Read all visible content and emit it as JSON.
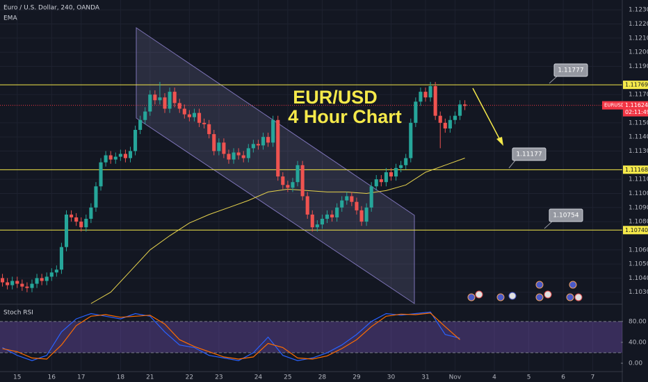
{
  "chart_data": [
    {
      "type": "candlestick",
      "title": "Euro / U.S. Dollar, 240, OANDA",
      "text": [
        "EUR/USD",
        "4 Hour Chart"
      ],
      "up_color": "#26a69a",
      "down_color": "#ef5350",
      "open": [
        1.104,
        1.1037,
        1.1035,
        1.1038,
        1.1036,
        1.1034,
        1.1033,
        1.1036,
        1.104,
        1.1038,
        1.1041,
        1.1044,
        1.1046,
        1.1062,
        1.1085,
        1.1083,
        1.108,
        1.1076,
        1.1082,
        1.109,
        1.1105,
        1.1122,
        1.1127,
        1.1124,
        1.1126,
        1.1128,
        1.1125,
        1.113,
        1.1145,
        1.1152,
        1.1158,
        1.117,
        1.1166,
        1.1168,
        1.116,
        1.1172,
        1.1164,
        1.116,
        1.1156,
        1.1154,
        1.1157,
        1.115,
        1.1149,
        1.1142,
        1.113,
        1.1136,
        1.1128,
        1.1124,
        1.1129,
        1.1127,
        1.1125,
        1.1132,
        1.1135,
        1.1134,
        1.114,
        1.1136,
        1.1152,
        1.1112,
        1.1106,
        1.1104,
        1.1108,
        1.112,
        1.1098,
        1.1085,
        1.1076,
        1.1078,
        1.1082,
        1.1085,
        1.1083,
        1.109,
        1.1095,
        1.1098,
        1.1094,
        1.1088,
        1.108,
        1.109,
        1.1105,
        1.111,
        1.1108,
        1.1115,
        1.1112,
        1.1118,
        1.112,
        1.1125,
        1.115,
        1.1165,
        1.1172,
        1.1168,
        1.1176,
        1.1155,
        1.115,
        1.1146,
        1.1152,
        1.1155,
        1.1163
      ],
      "high": [
        1.1043,
        1.104,
        1.1041,
        1.1041,
        1.1039,
        1.1037,
        1.1039,
        1.1043,
        1.1043,
        1.1044,
        1.1047,
        1.1049,
        1.1065,
        1.1088,
        1.1088,
        1.1086,
        1.1083,
        1.1085,
        1.1093,
        1.1108,
        1.1125,
        1.113,
        1.113,
        1.1129,
        1.1131,
        1.1131,
        1.1133,
        1.1148,
        1.1155,
        1.1161,
        1.1173,
        1.1173,
        1.1179,
        1.1171,
        1.1175,
        1.1175,
        1.1167,
        1.1163,
        1.1159,
        1.116,
        1.116,
        1.1153,
        1.1152,
        1.1145,
        1.1139,
        1.1139,
        1.1131,
        1.1132,
        1.1132,
        1.113,
        1.1135,
        1.1138,
        1.1138,
        1.1143,
        1.1143,
        1.1155,
        1.1155,
        1.1115,
        1.1109,
        1.1111,
        1.1123,
        1.1123,
        1.1101,
        1.1088,
        1.1081,
        1.1085,
        1.1088,
        1.1088,
        1.1093,
        1.1098,
        1.1101,
        1.1101,
        1.1097,
        1.1091,
        1.1093,
        1.1108,
        1.1113,
        1.1113,
        1.1118,
        1.1118,
        1.1121,
        1.1123,
        1.1128,
        1.1153,
        1.1168,
        1.1175,
        1.1175,
        1.1179,
        1.1179,
        1.1158,
        1.1153,
        1.1155,
        1.1158,
        1.1166,
        1.1166
      ],
      "low": [
        1.1034,
        1.1032,
        1.1032,
        1.1033,
        1.1031,
        1.103,
        1.103,
        1.1033,
        1.1035,
        1.1035,
        1.1038,
        1.1041,
        1.1043,
        1.1059,
        1.108,
        1.1077,
        1.1073,
        1.1073,
        1.1079,
        1.1087,
        1.1102,
        1.1119,
        1.1121,
        1.1121,
        1.1123,
        1.1122,
        1.1122,
        1.1127,
        1.1142,
        1.1149,
        1.1155,
        1.1163,
        1.1163,
        1.1157,
        1.1157,
        1.1161,
        1.1157,
        1.1153,
        1.1151,
        1.1151,
        1.1147,
        1.1146,
        1.1139,
        1.1127,
        1.1127,
        1.1125,
        1.1121,
        1.1121,
        1.1124,
        1.1122,
        1.1122,
        1.1129,
        1.1131,
        1.1131,
        1.1133,
        1.1133,
        1.1109,
        1.1103,
        1.1101,
        1.1101,
        1.1105,
        1.1095,
        1.1082,
        1.1073,
        1.1073,
        1.1075,
        1.1079,
        1.108,
        1.108,
        1.1087,
        1.1092,
        1.1091,
        1.1085,
        1.1077,
        1.1077,
        1.1087,
        1.1102,
        1.1105,
        1.1105,
        1.1109,
        1.1109,
        1.1115,
        1.1117,
        1.1122,
        1.1147,
        1.1162,
        1.1165,
        1.1165,
        1.1152,
        1.1132,
        1.1143,
        1.1143,
        1.1149,
        1.1152,
        1.1159
      ],
      "close": [
        1.1037,
        1.1035,
        1.1038,
        1.1036,
        1.1034,
        1.1033,
        1.1036,
        1.104,
        1.1038,
        1.1041,
        1.1044,
        1.1046,
        1.1062,
        1.1085,
        1.1083,
        1.108,
        1.1076,
        1.1082,
        1.109,
        1.1105,
        1.1122,
        1.1127,
        1.1124,
        1.1126,
        1.1128,
        1.1125,
        1.113,
        1.1145,
        1.1152,
        1.1158,
        1.117,
        1.1166,
        1.1168,
        1.116,
        1.1172,
        1.1164,
        1.116,
        1.1156,
        1.1154,
        1.1157,
        1.115,
        1.1149,
        1.1142,
        1.113,
        1.1136,
        1.1128,
        1.1124,
        1.1129,
        1.1127,
        1.1125,
        1.1132,
        1.1135,
        1.1134,
        1.114,
        1.1136,
        1.1152,
        1.1112,
        1.1106,
        1.1104,
        1.1108,
        1.112,
        1.1098,
        1.1085,
        1.1076,
        1.1078,
        1.1082,
        1.1085,
        1.1083,
        1.109,
        1.1095,
        1.1098,
        1.1094,
        1.1088,
        1.108,
        1.109,
        1.1105,
        1.111,
        1.1108,
        1.1115,
        1.1112,
        1.1118,
        1.112,
        1.1125,
        1.115,
        1.1165,
        1.1172,
        1.1168,
        1.1176,
        1.1155,
        1.115,
        1.1146,
        1.1152,
        1.1155,
        1.1163,
        1.1162
      ],
      "ema": {
        "name": "EMA",
        "color": "#e8d44d",
        "x": [
          18,
          22,
          26,
          30,
          34,
          38,
          42,
          46,
          50,
          54,
          58,
          62,
          66,
          70,
          74,
          78,
          82,
          86,
          90,
          94
        ],
        "values": [
          1.1022,
          1.103,
          1.1045,
          1.106,
          1.107,
          1.1079,
          1.1085,
          1.109,
          1.1095,
          1.1101,
          1.1103,
          1.1102,
          1.1101,
          1.1101,
          1.11,
          1.1102,
          1.1106,
          1.1115,
          1.112,
          1.1125
        ]
      },
      "xlim": [
        -0.5,
        126
      ],
      "xticks": [
        {
          "value": 3,
          "label": "15"
        },
        {
          "value": 10,
          "label": "16"
        },
        {
          "value": 16,
          "label": "17"
        },
        {
          "value": 24,
          "label": "18"
        },
        {
          "value": 30,
          "label": "21"
        },
        {
          "value": 38,
          "label": "22"
        },
        {
          "value": 44,
          "label": "23"
        },
        {
          "value": 52,
          "label": "24"
        },
        {
          "value": 58,
          "label": "25"
        },
        {
          "value": 65,
          "label": "28"
        },
        {
          "value": 72,
          "label": "29"
        },
        {
          "value": 79,
          "label": "30"
        },
        {
          "value": 86,
          "label": "31"
        },
        {
          "value": 92,
          "label": "Nov"
        },
        {
          "value": 100,
          "label": "4"
        },
        {
          "value": 107,
          "label": "5"
        },
        {
          "value": 114,
          "label": "6"
        },
        {
          "value": 120,
          "label": "7"
        }
      ],
      "ylim": [
        1.1022,
        1.1237
      ],
      "yticks": [
        {
          "value": 1.123,
          "label": "1.12300"
        },
        {
          "value": 1.122,
          "label": "1.12200"
        },
        {
          "value": 1.121,
          "label": "1.12100"
        },
        {
          "value": 1.12,
          "label": "1.12000"
        },
        {
          "value": 1.119,
          "label": "1.11900"
        },
        {
          "value": 1.117,
          "label": "1.11700"
        },
        {
          "value": 1.115,
          "label": "1.11500"
        },
        {
          "value": 1.114,
          "label": "1.11400"
        },
        {
          "value": 1.113,
          "label": "1.11300"
        },
        {
          "value": 1.111,
          "label": "1.11100"
        },
        {
          "value": 1.11,
          "label": "1.11000"
        },
        {
          "value": 1.109,
          "label": "1.10900"
        },
        {
          "value": 1.108,
          "label": "1.10800"
        },
        {
          "value": 1.106,
          "label": "1.10600"
        },
        {
          "value": 1.105,
          "label": "1.10500"
        },
        {
          "value": 1.104,
          "label": "1.10400"
        },
        {
          "value": 1.103,
          "label": "1.10300"
        }
      ],
      "grid": true,
      "hlines": [
        {
          "value": 1.11769,
          "label": "1.11769",
          "color": "#f5e94a"
        },
        {
          "value": 1.11168,
          "label": "1.11168",
          "color": "#f5e94a"
        },
        {
          "value": 1.1074,
          "label": "1.10740",
          "color": "#f5e94a"
        }
      ],
      "price_line": {
        "value": 1.11624,
        "label": "1.11624",
        "symbol": "EURUSD",
        "countdown": "02:11:49",
        "color": "#f23645"
      },
      "callouts": [
        "1.11777",
        "1.11177",
        "1.10754"
      ]
    },
    {
      "type": "line",
      "title": "Stoch RSI",
      "series": [
        {
          "color": "#2962ff",
          "x": [
            0,
            3,
            6,
            9,
            12,
            15,
            18,
            21,
            24,
            27,
            30,
            33,
            36,
            39,
            42,
            45,
            48,
            51,
            54,
            57,
            60,
            63,
            66,
            69,
            72,
            75,
            78,
            81,
            84,
            87,
            90,
            93
          ],
          "values": [
            30,
            15,
            5,
            15,
            60,
            85,
            95,
            90,
            85,
            95,
            90,
            60,
            35,
            30,
            15,
            10,
            5,
            20,
            50,
            15,
            5,
            10,
            20,
            35,
            55,
            80,
            95,
            92,
            95,
            98,
            55,
            48
          ]
        },
        {
          "color": "#ff6d00",
          "x": [
            0,
            3,
            6,
            9,
            12,
            15,
            18,
            21,
            24,
            27,
            30,
            33,
            36,
            39,
            42,
            45,
            48,
            51,
            54,
            57,
            60,
            63,
            66,
            69,
            72,
            75,
            78,
            81,
            84,
            87,
            90,
            93
          ],
          "values": [
            28,
            22,
            10,
            8,
            35,
            72,
            90,
            93,
            88,
            90,
            92,
            75,
            45,
            32,
            22,
            12,
            8,
            12,
            38,
            30,
            10,
            8,
            14,
            28,
            45,
            70,
            90,
            94,
            93,
            96,
            70,
            45
          ]
        }
      ],
      "band": [
        20,
        80
      ],
      "xlim": [
        -0.5,
        126
      ],
      "ylim": [
        -16,
        113
      ],
      "yticks": [
        {
          "value": 80,
          "label": "80.00"
        },
        {
          "value": 40,
          "label": "40.00"
        },
        {
          "value": 0,
          "label": "0.00"
        }
      ]
    }
  ]
}
